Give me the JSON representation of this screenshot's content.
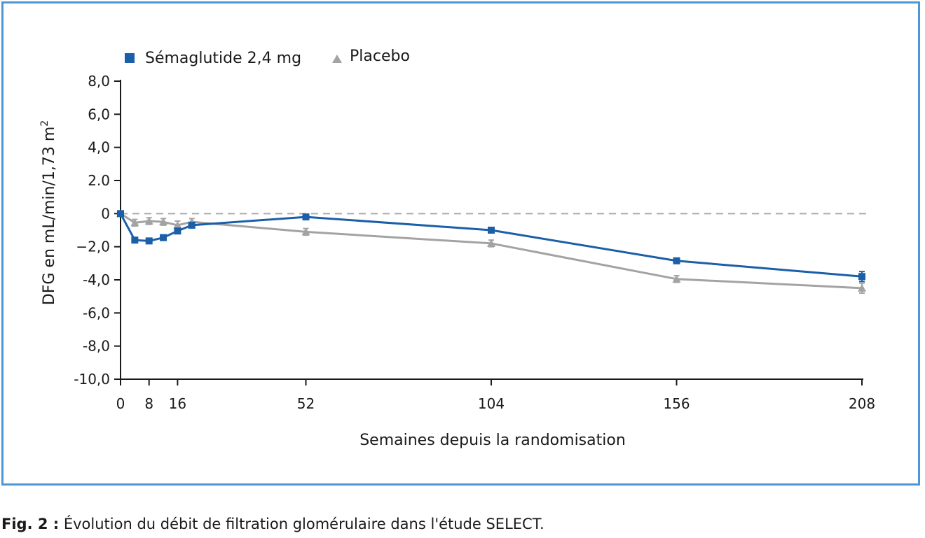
{
  "caption": {
    "label": "Fig. 2 :",
    "text": " Évolution du débit de filtration glomérulaire dans l'étude SELECT."
  },
  "chart_data": {
    "type": "line",
    "title": "",
    "xlabel": "Semaines depuis la randomisation",
    "ylabel_main": "DFG en mL/min/1,73 m",
    "ylabel_sup": "2",
    "xlim": [
      0,
      208
    ],
    "ylim": [
      -10,
      8
    ],
    "x_ticks": [
      0,
      8,
      16,
      52,
      104,
      156,
      208
    ],
    "x_tick_labels": [
      "0",
      "8",
      "16",
      "52",
      "104",
      "156",
      "208"
    ],
    "y_ticks": [
      8,
      6,
      4,
      2,
      0,
      -2,
      -4,
      -6,
      -8,
      -10
    ],
    "y_tick_labels": [
      "8,0",
      "6,0",
      "4,0",
      "2.0",
      "0",
      "−2,0",
      "-4,0",
      "-6,0",
      "-8,0",
      "-10,0"
    ],
    "reference_line": {
      "y": 0,
      "style": "dashed",
      "color": "#aaaaaa"
    },
    "grid": false,
    "legend_position": "top-left",
    "series": [
      {
        "name": "Sémaglutide 2,4 mg",
        "marker": "square",
        "color": "#1a5fa8",
        "x": [
          0,
          4,
          8,
          12,
          16,
          20,
          52,
          104,
          156,
          208
        ],
        "y": [
          0.0,
          -1.6,
          -1.65,
          -1.45,
          -1.05,
          -0.7,
          -0.2,
          -1.0,
          -2.85,
          -3.8
        ],
        "err": [
          0,
          0.1,
          0.1,
          0.1,
          0.1,
          0.1,
          0.1,
          0.12,
          0.15,
          0.3
        ]
      },
      {
        "name": "Placebo",
        "marker": "triangle",
        "color": "#a3a3a3",
        "x": [
          0,
          4,
          8,
          12,
          16,
          20,
          52,
          104,
          156,
          208
        ],
        "y": [
          0.0,
          -0.55,
          -0.45,
          -0.5,
          -0.7,
          -0.5,
          -1.1,
          -1.8,
          -3.95,
          -4.5
        ],
        "err": [
          0,
          0.2,
          0.2,
          0.2,
          0.25,
          0.2,
          0.2,
          0.2,
          0.2,
          0.3
        ]
      }
    ]
  }
}
